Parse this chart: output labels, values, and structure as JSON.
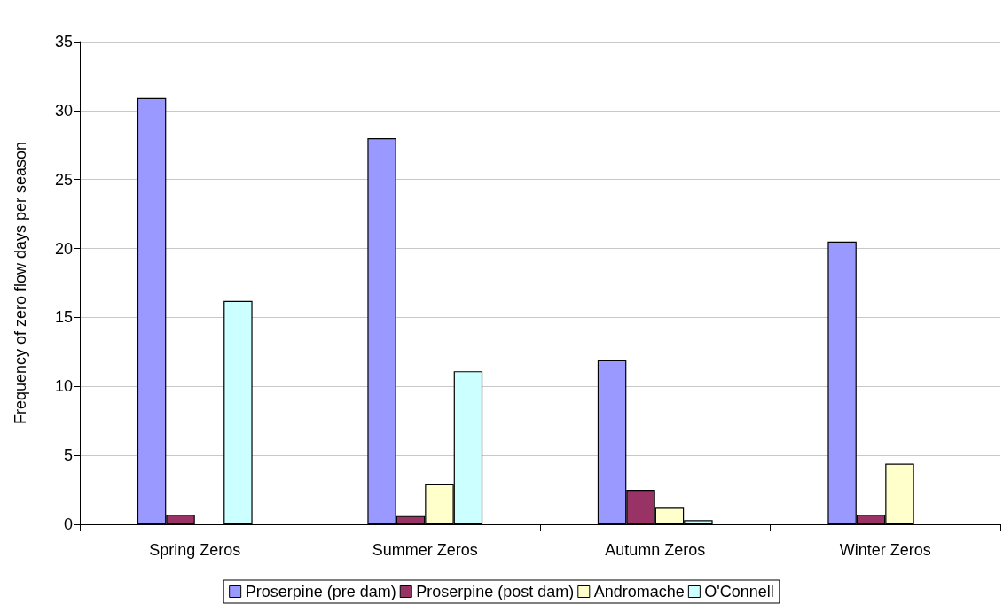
{
  "chart_data": {
    "type": "bar",
    "ylabel": "Frequency of zero flow days per season",
    "categories": [
      "Spring Zeros",
      "Summer Zeros",
      "Autumn Zeros",
      "Winter Zeros"
    ],
    "series": [
      {
        "name": "Proserpine (pre dam)",
        "color": "#9999ff",
        "values": [
          30.9,
          28.0,
          11.9,
          20.5
        ]
      },
      {
        "name": "Proserpine (post dam)",
        "color": "#993366",
        "values": [
          0.7,
          0.6,
          2.5,
          0.7
        ]
      },
      {
        "name": "Andromache",
        "color": "#ffffcc",
        "values": [
          null,
          2.9,
          1.2,
          4.4
        ]
      },
      {
        "name": "O'Connell",
        "color": "#ccffff",
        "values": [
          16.2,
          11.1,
          0.3,
          null
        ]
      }
    ],
    "ylim": [
      0,
      35
    ],
    "yticks": [
      0,
      5,
      10,
      15,
      20,
      25,
      30,
      35
    ],
    "grid": "y",
    "legend": "bottom"
  }
}
